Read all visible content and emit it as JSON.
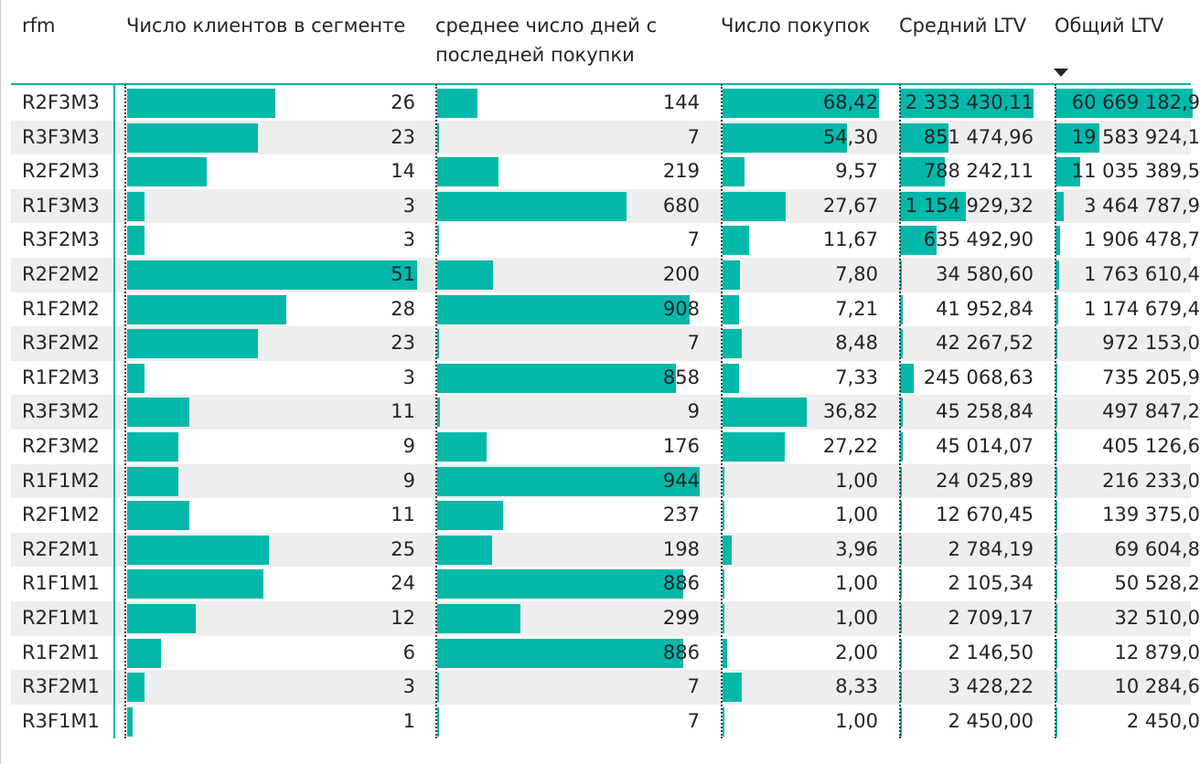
{
  "table": {
    "headers": {
      "rfm": "rfm",
      "clients": "Число клиентов в сегменте",
      "days_line1": "среднее число дней с",
      "days_line2": "последней покупки",
      "purchases": "Число покупок",
      "avg_ltv": "Средний LTV",
      "total_ltv": "Общий LTV"
    },
    "sort": {
      "column": "total_ltv",
      "direction": "descending",
      "icon": "sort-descending-icon"
    },
    "accent_color": "#01b8aa",
    "alt_row_color": "#eeeeee",
    "max": {
      "clients": 51,
      "days": 944,
      "purchases": 68.42,
      "avg_ltv": 2333430.11,
      "total_ltv": 60669182.9
    },
    "rows": [
      {
        "rfm": "R2F3M3",
        "clients": 26,
        "clients_text": "26",
        "days": 144,
        "days_text": "144",
        "purchases": 68.42,
        "purchases_text": "68,42",
        "avg_ltv": 2333430.11,
        "avg_ltv_text": "2 333 430,11",
        "total_ltv": 60669182.9,
        "total_ltv_text": "60 669 182,9"
      },
      {
        "rfm": "R3F3M3",
        "clients": 23,
        "clients_text": "23",
        "days": 7,
        "days_text": "7",
        "purchases": 54.3,
        "purchases_text": "54,30",
        "avg_ltv": 851474.96,
        "avg_ltv_text": "851 474,96",
        "total_ltv": 19583924.1,
        "total_ltv_text": "19 583 924,1"
      },
      {
        "rfm": "R2F2M3",
        "clients": 14,
        "clients_text": "14",
        "days": 219,
        "days_text": "219",
        "purchases": 9.57,
        "purchases_text": "9,57",
        "avg_ltv": 788242.11,
        "avg_ltv_text": "788 242,11",
        "total_ltv": 11035389.5,
        "total_ltv_text": "11 035 389,5"
      },
      {
        "rfm": "R1F3M3",
        "clients": 3,
        "clients_text": "3",
        "days": 680,
        "days_text": "680",
        "purchases": 27.67,
        "purchases_text": "27,67",
        "avg_ltv": 1154929.32,
        "avg_ltv_text": "1 154 929,32",
        "total_ltv": 3464787.9,
        "total_ltv_text": "3 464 787,9"
      },
      {
        "rfm": "R3F2M3",
        "clients": 3,
        "clients_text": "3",
        "days": 7,
        "days_text": "7",
        "purchases": 11.67,
        "purchases_text": "11,67",
        "avg_ltv": 635492.9,
        "avg_ltv_text": "635 492,90",
        "total_ltv": 1906478.7,
        "total_ltv_text": "1 906 478,7"
      },
      {
        "rfm": "R2F2M2",
        "clients": 51,
        "clients_text": "51",
        "days": 200,
        "days_text": "200",
        "purchases": 7.8,
        "purchases_text": "7,80",
        "avg_ltv": 34580.6,
        "avg_ltv_text": "34 580,60",
        "total_ltv": 1763610.4,
        "total_ltv_text": "1 763 610,4"
      },
      {
        "rfm": "R1F2M2",
        "clients": 28,
        "clients_text": "28",
        "days": 908,
        "days_text": "908",
        "purchases": 7.21,
        "purchases_text": "7,21",
        "avg_ltv": 41952.84,
        "avg_ltv_text": "41 952,84",
        "total_ltv": 1174679.4,
        "total_ltv_text": "1 174 679,4"
      },
      {
        "rfm": "R3F2M2",
        "clients": 23,
        "clients_text": "23",
        "days": 7,
        "days_text": "7",
        "purchases": 8.48,
        "purchases_text": "8,48",
        "avg_ltv": 42267.52,
        "avg_ltv_text": "42 267,52",
        "total_ltv": 972153.0,
        "total_ltv_text": "972 153,0"
      },
      {
        "rfm": "R1F2M3",
        "clients": 3,
        "clients_text": "3",
        "days": 858,
        "days_text": "858",
        "purchases": 7.33,
        "purchases_text": "7,33",
        "avg_ltv": 245068.63,
        "avg_ltv_text": "245 068,63",
        "total_ltv": 735205.9,
        "total_ltv_text": "735 205,9"
      },
      {
        "rfm": "R3F3M2",
        "clients": 11,
        "clients_text": "11",
        "days": 9,
        "days_text": "9",
        "purchases": 36.82,
        "purchases_text": "36,82",
        "avg_ltv": 45258.84,
        "avg_ltv_text": "45 258,84",
        "total_ltv": 497847.2,
        "total_ltv_text": "497 847,2"
      },
      {
        "rfm": "R2F3M2",
        "clients": 9,
        "clients_text": "9",
        "days": 176,
        "days_text": "176",
        "purchases": 27.22,
        "purchases_text": "27,22",
        "avg_ltv": 45014.07,
        "avg_ltv_text": "45 014,07",
        "total_ltv": 405126.6,
        "total_ltv_text": "405 126,6"
      },
      {
        "rfm": "R1F1M2",
        "clients": 9,
        "clients_text": "9",
        "days": 944,
        "days_text": "944",
        "purchases": 1.0,
        "purchases_text": "1,00",
        "avg_ltv": 24025.89,
        "avg_ltv_text": "24 025,89",
        "total_ltv": 216233.0,
        "total_ltv_text": "216 233,0"
      },
      {
        "rfm": "R2F1M2",
        "clients": 11,
        "clients_text": "11",
        "days": 237,
        "days_text": "237",
        "purchases": 1.0,
        "purchases_text": "1,00",
        "avg_ltv": 12670.45,
        "avg_ltv_text": "12 670,45",
        "total_ltv": 139375.0,
        "total_ltv_text": "139 375,0"
      },
      {
        "rfm": "R2F2M1",
        "clients": 25,
        "clients_text": "25",
        "days": 198,
        "days_text": "198",
        "purchases": 3.96,
        "purchases_text": "3,96",
        "avg_ltv": 2784.19,
        "avg_ltv_text": "2 784,19",
        "total_ltv": 69604.8,
        "total_ltv_text": "69 604,8"
      },
      {
        "rfm": "R1F1M1",
        "clients": 24,
        "clients_text": "24",
        "days": 886,
        "days_text": "886",
        "purchases": 1.0,
        "purchases_text": "1,00",
        "avg_ltv": 2105.34,
        "avg_ltv_text": "2 105,34",
        "total_ltv": 50528.2,
        "total_ltv_text": "50 528,2"
      },
      {
        "rfm": "R2F1M1",
        "clients": 12,
        "clients_text": "12",
        "days": 299,
        "days_text": "299",
        "purchases": 1.0,
        "purchases_text": "1,00",
        "avg_ltv": 2709.17,
        "avg_ltv_text": "2 709,17",
        "total_ltv": 32510.0,
        "total_ltv_text": "32 510,0"
      },
      {
        "rfm": "R1F2M1",
        "clients": 6,
        "clients_text": "6",
        "days": 886,
        "days_text": "886",
        "purchases": 2.0,
        "purchases_text": "2,00",
        "avg_ltv": 2146.5,
        "avg_ltv_text": "2 146,50",
        "total_ltv": 12879.0,
        "total_ltv_text": "12 879,0"
      },
      {
        "rfm": "R3F2M1",
        "clients": 3,
        "clients_text": "3",
        "days": 7,
        "days_text": "7",
        "purchases": 8.33,
        "purchases_text": "8,33",
        "avg_ltv": 3428.22,
        "avg_ltv_text": "3 428,22",
        "total_ltv": 10284.6,
        "total_ltv_text": "10 284,6"
      },
      {
        "rfm": "R3F1M1",
        "clients": 1,
        "clients_text": "1",
        "days": 7,
        "days_text": "7",
        "purchases": 1.0,
        "purchases_text": "1,00",
        "avg_ltv": 2450.0,
        "avg_ltv_text": "2 450,00",
        "total_ltv": 2450.0,
        "total_ltv_text": "2 450,0"
      }
    ]
  }
}
